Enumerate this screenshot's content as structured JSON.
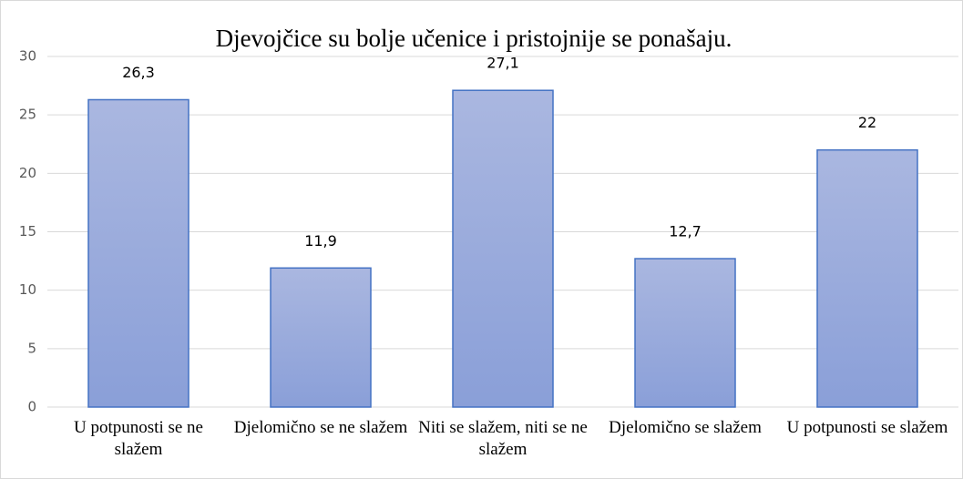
{
  "chart_data": {
    "type": "bar",
    "title": "Djevojčice su bolje učenice i pristojnije se ponašaju.",
    "categories": [
      "U potpunosti se ne slažem",
      "Djelomično se ne slažem",
      "Niti se slažem, niti se ne slažem",
      "Djelomično se slažem",
      "U potpunosti se slažem"
    ],
    "values": [
      26.3,
      11.9,
      27.1,
      12.7,
      22
    ],
    "value_labels": [
      "26,3",
      "11,9",
      "27,1",
      "12,7",
      "22"
    ],
    "color": "#4472c4",
    "ylim": [
      0,
      30
    ],
    "yticks": [
      0,
      5,
      10,
      15,
      20,
      25,
      30
    ],
    "grid": true
  }
}
